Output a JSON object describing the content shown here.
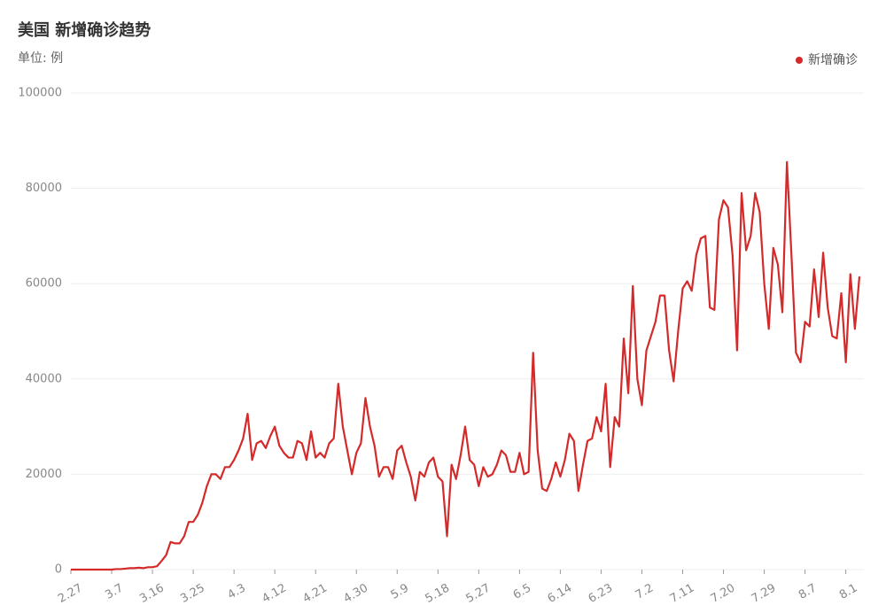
{
  "chart_data": {
    "type": "line",
    "title": "美国 新增确诊趋势",
    "subtitle": "单位: 例",
    "categories": [
      "2.27",
      null,
      null,
      null,
      null,
      null,
      null,
      null,
      null,
      "3.7",
      null,
      null,
      null,
      null,
      null,
      null,
      null,
      null,
      "3.16",
      null,
      null,
      null,
      null,
      null,
      null,
      null,
      null,
      "3.25",
      null,
      null,
      null,
      null,
      null,
      null,
      null,
      null,
      "4.3",
      null,
      null,
      null,
      null,
      null,
      null,
      null,
      null,
      "4.12",
      null,
      null,
      null,
      null,
      null,
      null,
      null,
      null,
      "4.21",
      null,
      null,
      null,
      null,
      null,
      null,
      null,
      null,
      "4.30",
      null,
      null,
      null,
      null,
      null,
      null,
      null,
      null,
      "5.9",
      null,
      null,
      null,
      null,
      null,
      null,
      null,
      null,
      "5.18",
      null,
      null,
      null,
      null,
      null,
      null,
      null,
      null,
      "5.27",
      null,
      null,
      null,
      null,
      null,
      null,
      null,
      null,
      "6.5",
      null,
      null,
      null,
      null,
      null,
      null,
      null,
      null,
      "6.14",
      null,
      null,
      null,
      null,
      null,
      null,
      null,
      null,
      "6.23",
      null,
      null,
      null,
      null,
      null,
      null,
      null,
      null,
      "7.2",
      null,
      null,
      null,
      null,
      null,
      null,
      null,
      null,
      "7.11",
      null,
      null,
      null,
      null,
      null,
      null,
      null,
      null,
      "7.20",
      null,
      null,
      null,
      null,
      null,
      null,
      null,
      null,
      "7.29",
      null,
      null,
      null,
      null,
      null,
      null,
      null,
      null,
      "8.7",
      null,
      null,
      null,
      null,
      null,
      null,
      null,
      null,
      "8.1",
      null,
      null,
      null
    ],
    "series": [
      {
        "name": "新增确诊",
        "color": "#d42a2a",
        "values": [
          0,
          0,
          0,
          0,
          0,
          0,
          0,
          0,
          0,
          0,
          100,
          100,
          200,
          300,
          300,
          400,
          300,
          500,
          500,
          700,
          1800,
          3000,
          5800,
          5500,
          5500,
          7000,
          10000,
          10000,
          11500,
          14000,
          17500,
          20000,
          20000,
          19000,
          21500,
          21500,
          23000,
          25000,
          27500,
          32700,
          23000,
          26500,
          27000,
          25500,
          28000,
          30000,
          26000,
          24500,
          23500,
          23500,
          27000,
          26500,
          23000,
          29000,
          23500,
          24500,
          23500,
          26500,
          27500,
          39000,
          30000,
          25000,
          20000,
          24500,
          26500,
          36000,
          30000,
          26000,
          19500,
          21500,
          21500,
          19000,
          25000,
          26000,
          22500,
          19500,
          14500,
          20500,
          19500,
          22500,
          23500,
          19500,
          18500,
          7000,
          22000,
          19000,
          24000,
          30000,
          23000,
          22000,
          17500,
          21500,
          19500,
          20000,
          22000,
          25000,
          24000,
          20500,
          20500,
          24500,
          20000,
          20500,
          45500,
          25000,
          17000,
          16500,
          19000,
          22500,
          19500,
          23000,
          28500,
          27000,
          16500,
          22000,
          27000,
          27500,
          32000,
          29000,
          39000,
          21500,
          32000,
          30000,
          48500,
          37000,
          59500,
          40000,
          34500,
          46000,
          49000,
          52000,
          57500,
          57500,
          46000,
          39500,
          50000,
          59000,
          60500,
          58500,
          66000,
          69500,
          70000,
          55000,
          54500,
          73500,
          77500,
          76000,
          66000,
          46000,
          79000,
          67000,
          70000,
          79000,
          75000,
          60000,
          50500,
          67500,
          64000,
          54000,
          85500,
          66000,
          45500,
          43500,
          52000,
          51000,
          63000,
          53000,
          66500,
          55000,
          49000,
          48500,
          58000,
          43500,
          62000,
          50500,
          61500
        ]
      }
    ],
    "ylim": [
      0,
      100000
    ],
    "yticks": [
      0,
      20000,
      40000,
      60000,
      80000,
      100000
    ],
    "grid": true,
    "legend": "top-right"
  }
}
